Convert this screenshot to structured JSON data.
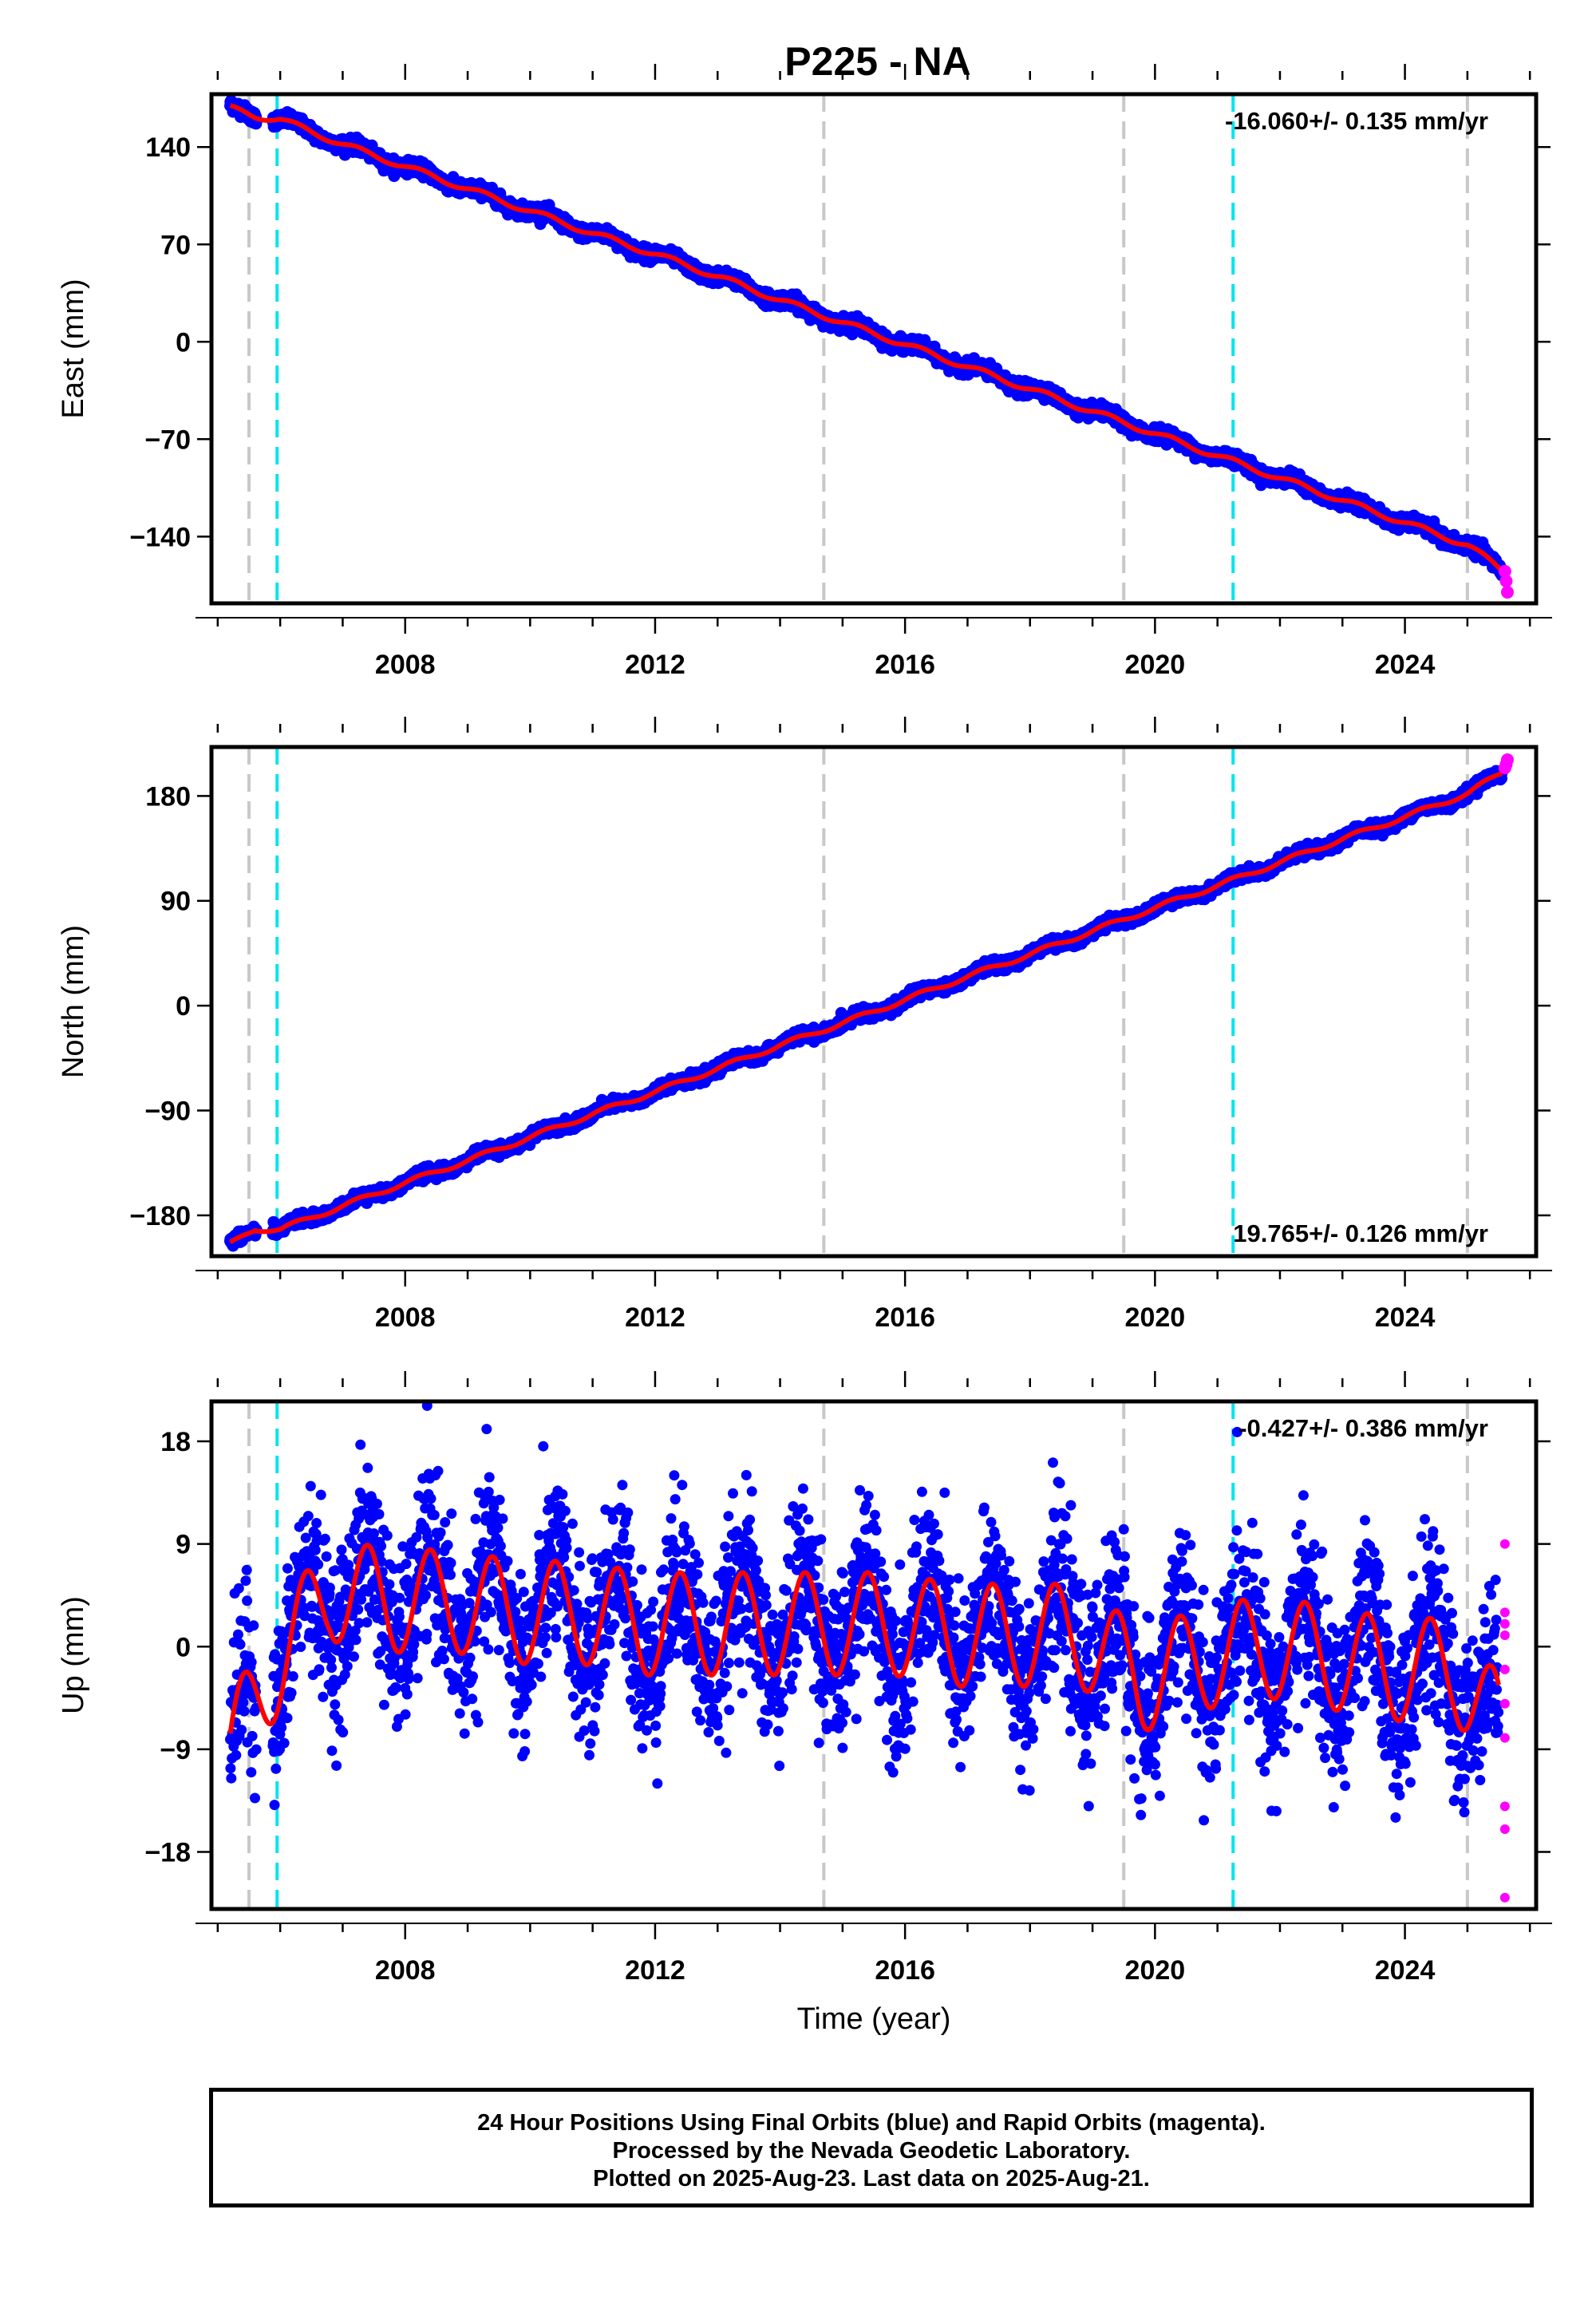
{
  "title": "P225 - NA",
  "footer": {
    "line1": "24 Hour Positions Using Final Orbits (blue) and Rapid Orbits (magenta).",
    "line2": "Processed by the Nevada Geodetic Laboratory.",
    "line3": "Plotted on 2025-Aug-23. Last data on 2025-Aug-21."
  },
  "colors": {
    "final": "#0000ff",
    "rapid": "#ff00ff",
    "model": "#ff0000",
    "equipment_change": "#c8c8c8",
    "earthquake": "#00e5ee"
  },
  "chart_data": [
    {
      "type": "scatter",
      "component": "East",
      "ylabel": "East (mm)",
      "xlabel": "",
      "xlim": [
        2004.9,
        2026.1
      ],
      "ylim": [
        -188,
        178
      ],
      "xticks": [
        2008,
        2012,
        2016,
        2020,
        2024
      ],
      "yticks": [
        -140,
        -70,
        0,
        70,
        140
      ],
      "ytick_labels": [
        "−140",
        "−70",
        "0",
        "70",
        "140"
      ],
      "annotation": "-16.060+/- 0.135 mm/yr",
      "annotation_position": "top-right",
      "rate": -16.06,
      "final_series": {
        "x": [
          2005.2,
          2005.6,
          2006.0,
          2007.0,
          2008.0,
          2009.0,
          2010.0,
          2011.0,
          2012.0,
          2013.0,
          2014.0,
          2015.0,
          2016.0,
          2017.0,
          2018.0,
          2019.0,
          2020.0,
          2021.0,
          2022.0,
          2023.0,
          2024.0,
          2025.0,
          2025.55
        ],
        "y": [
          168,
          162,
          160,
          142,
          126,
          110,
          94,
          78,
          63,
          47,
          30,
          14,
          -2,
          -18,
          -34,
          -50,
          -66,
          -82,
          -98,
          -114,
          -130,
          -146,
          -164
        ]
      },
      "rapid_series": {
        "x": [
          2025.6,
          2025.62,
          2025.64
        ],
        "y": [
          -165,
          -172,
          -180
        ]
      },
      "equipment_changes": [
        2005.5,
        2014.7,
        2019.5,
        2025.0
      ],
      "earthquakes": [
        2005.95,
        2021.25
      ]
    },
    {
      "type": "scatter",
      "component": "North",
      "ylabel": "North (mm)",
      "xlabel": "",
      "xlim": [
        2004.9,
        2026.1
      ],
      "ylim": [
        -215,
        222
      ],
      "xticks": [
        2008,
        2012,
        2016,
        2020,
        2024
      ],
      "yticks": [
        -180,
        -90,
        0,
        90,
        180
      ],
      "ytick_labels": [
        "−180",
        "−90",
        "0",
        "90",
        "180"
      ],
      "annotation": "19.765+/- 0.126 mm/yr",
      "annotation_position": "bottom-right",
      "rate": 19.765,
      "final_series": {
        "x": [
          2005.2,
          2005.6,
          2006.0,
          2007.0,
          2008.0,
          2009.0,
          2010.0,
          2011.0,
          2012.0,
          2013.0,
          2014.0,
          2015.0,
          2016.0,
          2017.0,
          2018.0,
          2019.0,
          2020.0,
          2021.0,
          2022.0,
          2023.0,
          2024.0,
          2025.0,
          2025.55
        ],
        "y": [
          -205,
          -192,
          -192,
          -172,
          -152,
          -133,
          -113,
          -93,
          -74,
          -54,
          -34,
          -15,
          5,
          25,
          44,
          64,
          84,
          103,
          123,
          143,
          162,
          182,
          200
        ]
      },
      "rapid_series": {
        "x": [
          2025.6,
          2025.62,
          2025.64
        ],
        "y": [
          204,
          207,
          211
        ]
      },
      "equipment_changes": [
        2005.5,
        2014.7,
        2019.5,
        2025.0
      ],
      "earthquakes": [
        2005.95,
        2021.25
      ]
    },
    {
      "type": "scatter",
      "component": "Up",
      "ylabel": "Up (mm)",
      "xlabel": "Time (year)",
      "xlim": [
        2004.9,
        2026.1
      ],
      "ylim": [
        -23,
        21.5
      ],
      "xticks": [
        2008,
        2012,
        2016,
        2020,
        2024
      ],
      "yticks": [
        -18,
        -9,
        0,
        9,
        18
      ],
      "ytick_labels": [
        "−18",
        "−9",
        "0",
        "9",
        "18"
      ],
      "annotation": "-0.427+/- 0.386 mm/yr",
      "annotation_position": "top-right",
      "rate": -0.427,
      "seasonal_amplitude": 4.5,
      "final_series": {
        "x": [
          2005.2,
          2006.0,
          2006.8,
          2007.8,
          2008.8,
          2009.8,
          2010.8,
          2011.8,
          2012.8,
          2013.8,
          2014.8,
          2015.8,
          2016.8,
          2017.8,
          2018.8,
          2019.8,
          2020.8,
          2021.8,
          2022.8,
          2023.8,
          2024.8,
          2025.5
        ],
        "y": [
          -6,
          2,
          8,
          7,
          7,
          6,
          6,
          5,
          5,
          5,
          5,
          5,
          4,
          4,
          4,
          0,
          2,
          3,
          2,
          1,
          1,
          -4
        ]
      },
      "rapid_series": {
        "x": [
          2025.6,
          2025.6,
          2025.6,
          2025.6,
          2025.6,
          2025.6,
          2025.6,
          2025.6,
          2025.6,
          2025.6
        ],
        "y": [
          9,
          3,
          2,
          1,
          -2,
          -5,
          -8,
          -14,
          -16,
          -22
        ]
      },
      "equipment_changes": [
        2005.5,
        2014.7,
        2019.5,
        2025.0
      ],
      "earthquakes": [
        2005.95,
        2021.25
      ]
    }
  ]
}
